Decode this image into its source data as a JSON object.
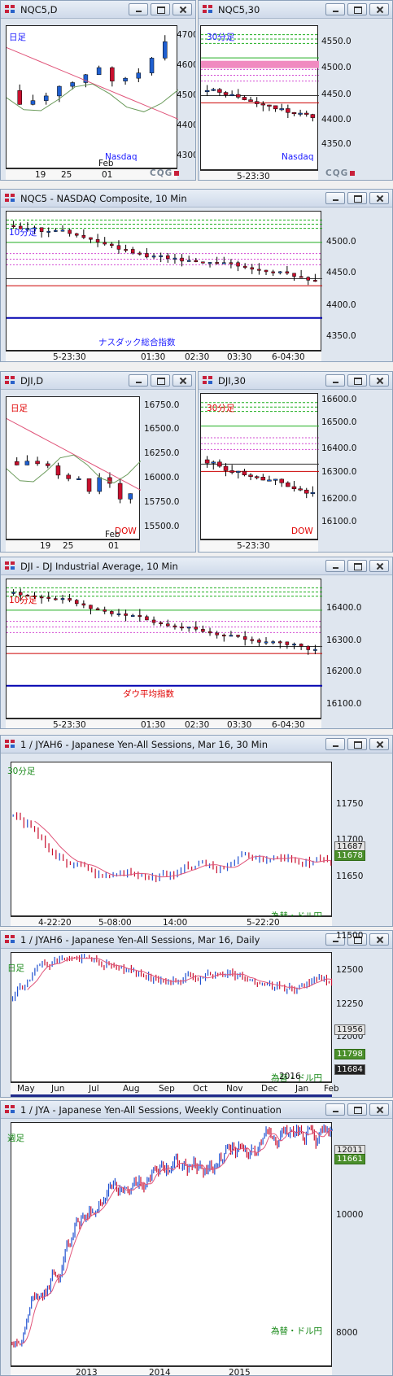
{
  "windows": [
    {
      "title": "NQC5,D",
      "tf": "日足",
      "tfColor": "#1a1aff",
      "index": "Nasdaq",
      "ticks": [
        "4700.0",
        "4600.0",
        "4500.0",
        "4400.0",
        "4300.0"
      ],
      "xl": [
        "19",
        "25",
        "01"
      ],
      "xsub": "Feb"
    },
    {
      "title": "NQC5,30",
      "tf": "30分足",
      "tfColor": "#1a1aff",
      "index": "Nasdaq",
      "ticks": [
        "4550.0",
        "4500.0",
        "4450.0",
        "4400.0",
        "4350.0"
      ],
      "xl": [
        "5-23:30"
      ]
    },
    {
      "title": "NQC5 - NASDAQ Composite, 10 Min",
      "tf": "10分足",
      "tfColor": "#1a1aff",
      "index": "ナスダック総合指数",
      "ticks": [
        "4500.0",
        "4450.0",
        "4400.0",
        "4350.0"
      ],
      "xl": [
        "5-23:30",
        "01:30",
        "02:30",
        "03:30",
        "6-04:30"
      ]
    },
    {
      "title": "DJI,D",
      "tf": "日足",
      "tfColor": "#e00000",
      "index": "DOW",
      "ticks": [
        "16750.0",
        "16500.0",
        "16250.0",
        "16000.0",
        "15750.0",
        "15500.0"
      ],
      "xl": [
        "19",
        "25",
        "01"
      ],
      "xsub": "Feb"
    },
    {
      "title": "DJI,30",
      "tf": "30分足",
      "tfColor": "#e00000",
      "index": "DOW",
      "ticks": [
        "16600.0",
        "16500.0",
        "16400.0",
        "16300.0",
        "16200.0",
        "16100.0"
      ],
      "xl": [
        "5-23:30"
      ]
    },
    {
      "title": "DJI - DJ Industrial Average, 10 Min",
      "tf": "10分足",
      "tfColor": "#e00000",
      "index": "ダウ平均指数",
      "ticks": [
        "16400.0",
        "16300.0",
        "16200.0",
        "16100.0"
      ],
      "xl": [
        "5-23:30",
        "01:30",
        "02:30",
        "03:30",
        "6-04:30"
      ]
    },
    {
      "title": "1 / JYAH6 - Japanese Yen-All Sessions, Mar 16, 30 Min",
      "tf": "30分足",
      "tfColor": "#1a8a1a",
      "index": "為替・ドル円",
      "ticks": [
        "11750",
        "11700",
        "11650"
      ],
      "tags": [
        "11687",
        "11678"
      ],
      "xl": [
        "4-22:20",
        "5-08:00",
        "14:00",
        "5-22:20"
      ]
    },
    {
      "title": "1 / JYAH6 - Japanese Yen-All Sessions, Mar 16, Daily",
      "tf": "日足",
      "tfColor": "#1a8a1a",
      "index": "為替・ドル円",
      "ticks": [
        "12500",
        "12250",
        "12000",
        "11750",
        "11500"
      ],
      "tags": [
        "11956",
        "11798",
        "11684"
      ],
      "xl": [
        "May",
        "Jun",
        "Jul",
        "Aug",
        "Sep",
        "Oct",
        "Nov",
        "Dec",
        "Jan",
        "Feb"
      ],
      "xsub": "2016"
    },
    {
      "title": "1 / JYA - Japanese Yen-All Sessions, Weekly Continuation",
      "tf": "週足",
      "tfColor": "#1a8a1a",
      "index": "為替・ドル円",
      "ticks": [
        "10000",
        "8000"
      ],
      "tags": [
        "12011",
        "11661"
      ],
      "xl": [
        "2013",
        "2014",
        "2015"
      ]
    }
  ]
}
